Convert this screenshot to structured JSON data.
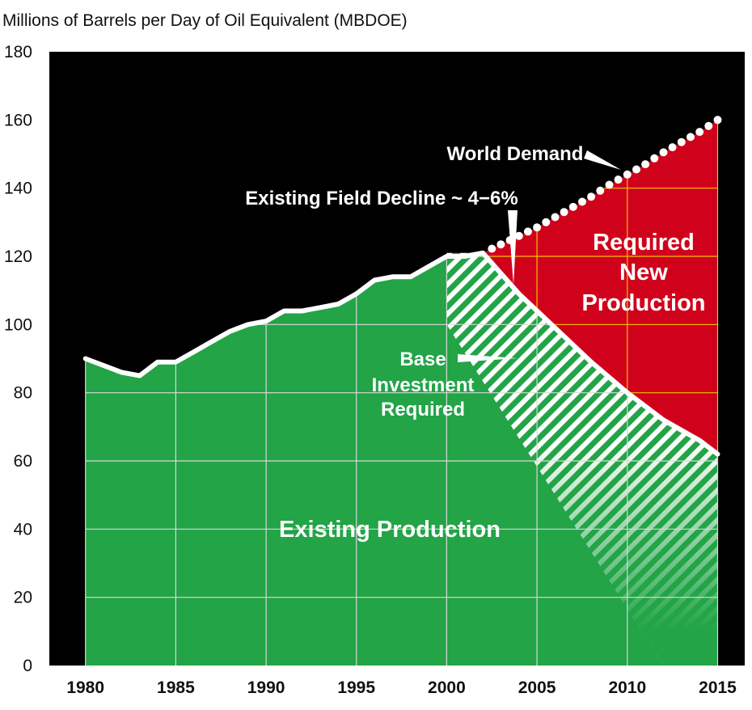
{
  "chart_data": {
    "type": "area",
    "title": "",
    "ylabel": "Millions of Barrels per Day of Oil Equivalent (MBDOE)",
    "xlabel": "",
    "xlim": [
      1978,
      2016.5
    ],
    "ylim": [
      0,
      180
    ],
    "x_ticks": [
      1980,
      1985,
      1990,
      1995,
      2000,
      2005,
      2010,
      2015
    ],
    "y_ticks": [
      0,
      20,
      40,
      60,
      80,
      100,
      120,
      140,
      160,
      180
    ],
    "grid": true,
    "colors": {
      "background": "#000000",
      "existing_production": "#22a447",
      "required_new_production": "#d0021b",
      "grid_on_green": "#d9d9d9",
      "grid_on_red": "#f2c200",
      "lines": "#ffffff"
    },
    "series": [
      {
        "name": "Existing Production",
        "x": [
          1980,
          1981,
          1982,
          1983,
          1984,
          1985,
          1986,
          1987,
          1988,
          1989,
          1990,
          1991,
          1992,
          1993,
          1994,
          1995,
          1996,
          1997,
          1998,
          1999,
          2000,
          2001,
          2002
        ],
        "y": [
          90,
          88,
          86,
          85,
          89,
          89,
          92,
          95,
          98,
          100,
          101,
          104,
          104,
          105,
          106,
          109,
          113,
          114,
          114,
          117,
          120,
          120,
          121
        ]
      },
      {
        "name": "Base Investment Required",
        "x": [
          2002,
          2004,
          2006,
          2008,
          2010,
          2012,
          2014,
          2015
        ],
        "y": [
          121,
          109,
          99,
          89,
          80,
          72,
          66,
          62
        ]
      },
      {
        "name": "World Demand",
        "x": [
          2002,
          2003,
          2004,
          2005,
          2006,
          2007,
          2008,
          2009,
          2010,
          2011,
          2012,
          2013,
          2014,
          2015
        ],
        "y": [
          121,
          123.5,
          126,
          128.5,
          131.5,
          134.5,
          137.5,
          141,
          144,
          147,
          150.5,
          153.5,
          156.5,
          160
        ]
      }
    ],
    "annotations": {
      "world_demand": "World Demand",
      "field_decline": "Existing Field Decline ~ 4−6%",
      "required_new_production": [
        "Required",
        "New",
        "Production"
      ],
      "base_investment": [
        "Base",
        "Investment",
        "Required"
      ],
      "existing_production": "Existing Production"
    }
  }
}
